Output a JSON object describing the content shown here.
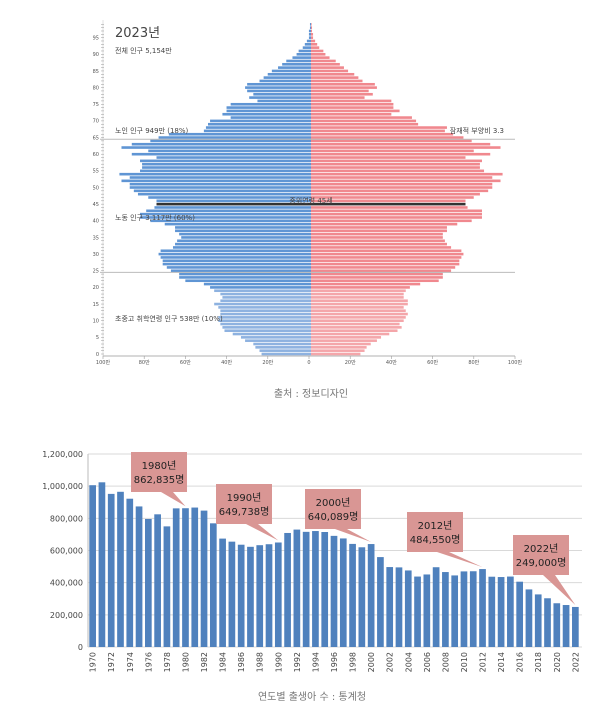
{
  "chart_data": [
    {
      "type": "bar",
      "orientation": "horizontal-pyramid",
      "title": "2023년",
      "annotations": {
        "total": "전체 인구   5,154만",
        "elderly": "노인 인구   949만   (18%)",
        "support_ratio": "잠재적 부양비 3.3",
        "median_age": "중위연령 45세",
        "working": "노동 인구   3,117만   (60%)",
        "school": "초중고 취학연령 인구   538만   (10%)"
      },
      "y_ticks": [
        "0",
        "5",
        "10",
        "15",
        "20",
        "25",
        "30",
        "35",
        "40",
        "45",
        "50",
        "55",
        "60",
        "65",
        "70",
        "75",
        "80",
        "85",
        "90",
        "95"
      ],
      "x_ticks": [
        "100만",
        "80만",
        "60만",
        "40만",
        "20만",
        "0",
        "20만",
        "40만",
        "60만",
        "80만",
        "100만"
      ],
      "xlim": [
        -100,
        100
      ],
      "unit": "만",
      "ages": "0-99",
      "median_age": 45,
      "reference_ages": [
        64.5,
        24.5
      ],
      "series": [
        {
          "side": "left",
          "color": "#5f95d4",
          "light_color": "#8eb2e0",
          "values": [
            24,
            25,
            27,
            28,
            32,
            34,
            38,
            42,
            43,
            44,
            45,
            45,
            44,
            44,
            45,
            47,
            44,
            43,
            44,
            47,
            49,
            52,
            61,
            64,
            64,
            68,
            70,
            72,
            72,
            73,
            74,
            73,
            67,
            66,
            65,
            63,
            64,
            66,
            66,
            71,
            78,
            83,
            83,
            80,
            76,
            75,
            75,
            79,
            84,
            86,
            88,
            88,
            92,
            88,
            93,
            83,
            82,
            82,
            83,
            75,
            87,
            79,
            92,
            87,
            78,
            74,
            69,
            52,
            51,
            50,
            49,
            39,
            43,
            41,
            41,
            39,
            26,
            30,
            28,
            31,
            32,
            31,
            25,
            23,
            21,
            19,
            16,
            14,
            12,
            9,
            7,
            6,
            4,
            3,
            2,
            1,
            1,
            1,
            0.5,
            0.5
          ]
        },
        {
          "side": "right",
          "color": "#f0888e",
          "light_color": "#f4a6aa",
          "values": [
            24,
            26,
            27,
            29,
            32,
            34,
            38,
            42,
            44,
            43,
            45,
            46,
            47,
            46,
            45,
            47,
            47,
            45,
            45,
            46,
            48,
            53,
            62,
            64,
            64,
            68,
            70,
            72,
            72,
            73,
            74,
            73,
            68,
            66,
            65,
            64,
            64,
            66,
            66,
            71,
            78,
            83,
            83,
            83,
            76,
            75,
            75,
            79,
            82,
            86,
            88,
            88,
            92,
            88,
            93,
            84,
            82,
            82,
            83,
            75,
            87,
            79,
            92,
            87,
            78,
            74,
            69,
            65,
            66,
            52,
            51,
            49,
            39,
            43,
            40,
            40,
            39,
            26,
            30,
            28,
            32,
            31,
            25,
            23,
            21,
            18,
            16,
            14,
            12,
            9,
            7,
            6,
            4,
            3,
            2,
            1,
            1,
            0.5,
            0.5,
            0.3
          ]
        }
      ],
      "caption": "출처 : 정보디자인"
    },
    {
      "type": "bar",
      "categories": [
        1970,
        1971,
        1972,
        1973,
        1974,
        1975,
        1976,
        1977,
        1978,
        1979,
        1980,
        1981,
        1982,
        1983,
        1984,
        1985,
        1986,
        1987,
        1988,
        1989,
        1990,
        1991,
        1992,
        1993,
        1994,
        1995,
        1996,
        1997,
        1998,
        1999,
        2000,
        2001,
        2002,
        2003,
        2004,
        2005,
        2006,
        2007,
        2008,
        2009,
        2010,
        2011,
        2012,
        2013,
        2014,
        2015,
        2016,
        2017,
        2018,
        2019,
        2020,
        2021,
        2022
      ],
      "values": [
        1006000,
        1024000,
        952000,
        965000,
        922000,
        874000,
        796000,
        825000,
        750000,
        862000,
        862835,
        867000,
        848000,
        769000,
        674000,
        655000,
        636000,
        623000,
        633000,
        639000,
        649738,
        709000,
        730000,
        716000,
        721000,
        715000,
        691000,
        675000,
        641000,
        620000,
        640089,
        559000,
        497000,
        495000,
        476000,
        438000,
        451000,
        496000,
        466000,
        445000,
        470000,
        471000,
        484550,
        437000,
        435000,
        438000,
        406000,
        358000,
        327000,
        303000,
        272000,
        261000,
        249000
      ],
      "ylim": [
        0,
        1200000
      ],
      "y_ticks": [
        "0",
        "200,000",
        "400,000",
        "600,000",
        "800,000",
        "1,000,000",
        "1,200,000"
      ],
      "grid": true,
      "bar_color": "#4f81bd",
      "callout_color": "#d99694",
      "callouts": [
        {
          "year": 1980,
          "line1": "1980년",
          "line2": "862,835명"
        },
        {
          "year": 1990,
          "line1": "1990년",
          "line2": "649,738명"
        },
        {
          "year": 2000,
          "line1": "2000년",
          "line2": "640,089명"
        },
        {
          "year": 2012,
          "line1": "2012년",
          "line2": "484,550명"
        },
        {
          "year": 2022,
          "line1": "2022년",
          "line2": "249,000명"
        }
      ],
      "caption": "연도별 출생아 수 : 통계청"
    }
  ]
}
